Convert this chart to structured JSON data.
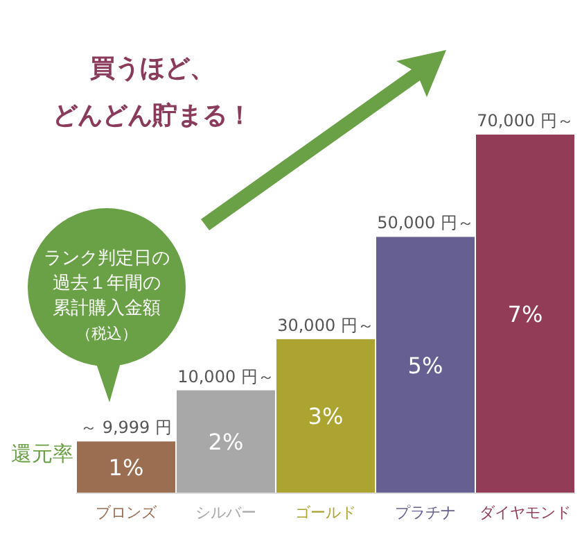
{
  "chart_data": {
    "type": "bar",
    "title": "買うほど、",
    "subtitle": "どんどん貯まる！",
    "ylabel": "還元率",
    "categories": [
      "ブロンズ",
      "シルバー",
      "ゴールド",
      "プラチナ",
      "ダイヤモンド"
    ],
    "values": [
      1,
      2,
      3,
      5,
      7
    ],
    "value_labels": [
      "1%",
      "2%",
      "3%",
      "5%",
      "7%"
    ],
    "colors": [
      "#9b6e52",
      "#a8a8a8",
      "#aca431",
      "#665f91",
      "#923c58"
    ],
    "annotations": [
      {
        "text": "～ 9,999 円",
        "x": "ブロンズ",
        "y": 1
      },
      {
        "text": "10,000 円～",
        "x": "シルバー",
        "y": 2
      },
      {
        "text": "30,000 円～",
        "x": "ゴールド",
        "y": 3
      },
      {
        "text": "50,000 円～",
        "x": "プラチナ",
        "y": 5
      },
      {
        "text": "70,000 円～",
        "x": "ダイヤモンド",
        "y": 7
      },
      "ランク判定日の",
      "過去１年間の",
      "累計購入金額",
      "（税込）"
    ]
  }
}
